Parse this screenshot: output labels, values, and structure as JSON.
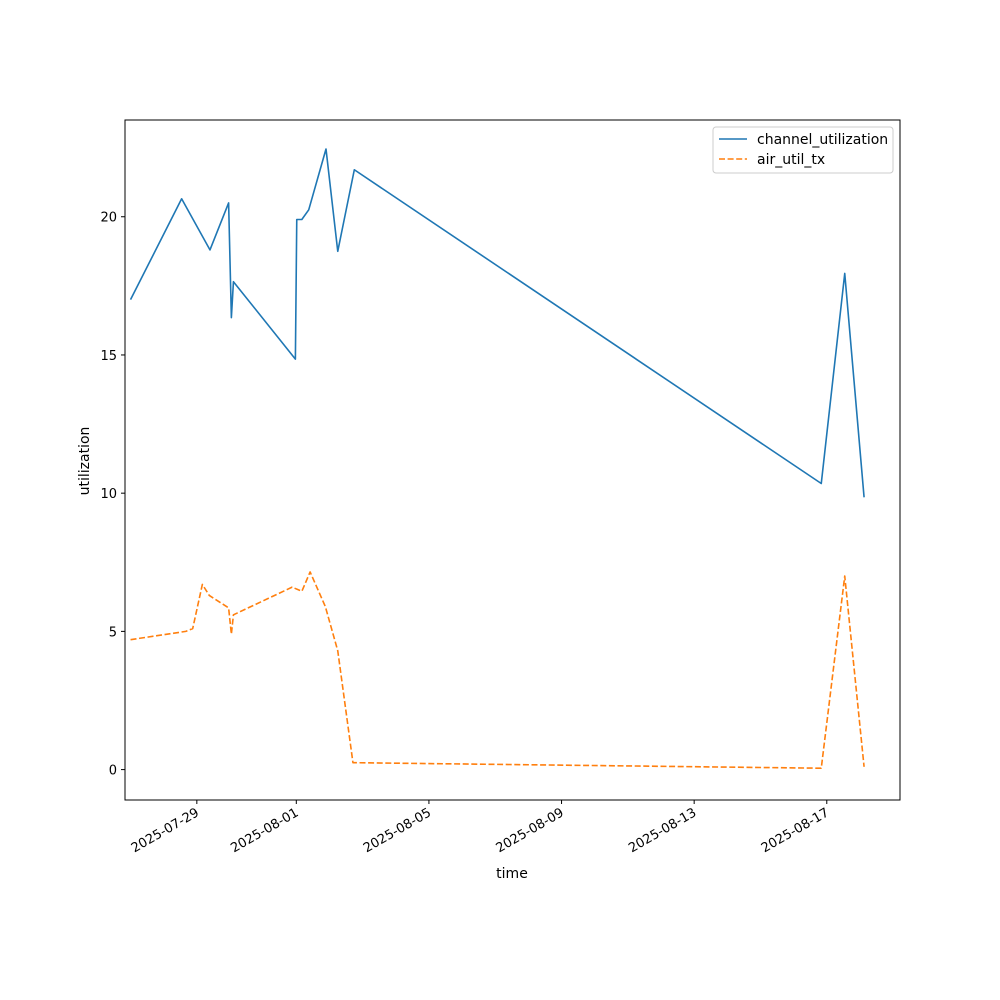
{
  "chart_data": {
    "type": "line",
    "title": "",
    "xlabel": "time",
    "ylabel": "utilization",
    "xlim": [
      "2025-07-26T20:00",
      "2025-08-19T05:00"
    ],
    "ylim": [
      -1.1,
      23.5
    ],
    "x_ticks": [
      "2025-07-29",
      "2025-08-01",
      "2025-08-05",
      "2025-08-09",
      "2025-08-13",
      "2025-08-17"
    ],
    "y_ticks": [
      0,
      5,
      10,
      15,
      20
    ],
    "grid": false,
    "legend": "top-right",
    "series": [
      {
        "name": "channel_utilization",
        "color": "#1f77b4",
        "style": "solid",
        "points": [
          [
            "2025-07-27T00:00",
            17.0
          ],
          [
            "2025-07-28T13:00",
            20.65
          ],
          [
            "2025-07-29T09:30",
            18.8
          ],
          [
            "2025-07-29T23:00",
            20.5
          ],
          [
            "2025-07-30T01:00",
            16.35
          ],
          [
            "2025-07-30T02:30",
            17.65
          ],
          [
            "2025-07-31T23:20",
            14.85
          ],
          [
            "2025-08-01T00:20",
            19.9
          ],
          [
            "2025-08-01T04:00",
            19.9
          ],
          [
            "2025-08-01T09:00",
            20.25
          ],
          [
            "2025-08-01T21:30",
            22.45
          ],
          [
            "2025-08-02T06:00",
            18.75
          ],
          [
            "2025-08-02T18:00",
            21.7
          ],
          [
            "2025-08-16T20:00",
            10.35
          ],
          [
            "2025-08-17T13:00",
            17.95
          ],
          [
            "2025-08-18T03:00",
            9.85
          ]
        ]
      },
      {
        "name": "air_util_tx",
        "color": "#ff7f0e",
        "style": "dashed",
        "points": [
          [
            "2025-07-27T00:00",
            4.7
          ],
          [
            "2025-07-28T16:00",
            5.0
          ],
          [
            "2025-07-28T21:00",
            5.1
          ],
          [
            "2025-07-29T04:00",
            6.7
          ],
          [
            "2025-07-29T09:00",
            6.3
          ],
          [
            "2025-07-29T23:00",
            5.85
          ],
          [
            "2025-07-30T01:00",
            4.9
          ],
          [
            "2025-07-30T02:30",
            5.6
          ],
          [
            "2025-07-31T21:00",
            6.6
          ],
          [
            "2025-08-01T04:00",
            6.45
          ],
          [
            "2025-08-01T10:00",
            7.15
          ],
          [
            "2025-08-01T21:00",
            5.9
          ],
          [
            "2025-08-02T06:00",
            4.3
          ],
          [
            "2025-08-02T17:00",
            0.25
          ],
          [
            "2025-08-16T20:00",
            0.05
          ],
          [
            "2025-08-17T13:00",
            7.0
          ],
          [
            "2025-08-18T03:00",
            0.1
          ]
        ]
      }
    ]
  }
}
